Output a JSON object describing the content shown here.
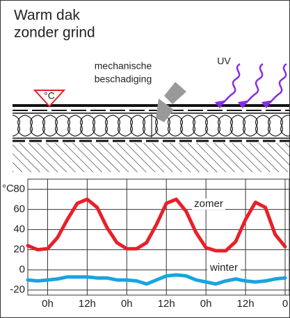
{
  "header": {
    "title_lines": [
      "Warm dak",
      "zonder grind"
    ]
  },
  "diagram": {
    "damage_label_lines": [
      "mechanische",
      "beschadiging"
    ],
    "uv_label": "UV",
    "temp_symbol": "°C"
  },
  "chart_data": {
    "type": "line",
    "ylabel": "°C",
    "x": [
      -6,
      -3,
      0,
      3,
      6,
      9,
      12,
      15,
      18,
      21,
      24,
      27,
      30,
      33,
      36,
      39,
      42,
      45,
      48,
      51,
      54,
      57,
      60,
      63,
      66,
      69,
      72
    ],
    "series": [
      {
        "name": "zomer",
        "color": "#e8202a",
        "values": [
          24,
          20,
          21,
          32,
          50,
          66,
          70,
          62,
          42,
          27,
          21,
          21,
          27,
          45,
          66,
          70,
          58,
          37,
          22,
          19,
          19,
          28,
          50,
          67,
          62,
          35,
          23
        ]
      },
      {
        "name": "winter",
        "color": "#1aa3e0",
        "values": [
          -10,
          -11,
          -10,
          -9,
          -7,
          -7,
          -7,
          -8,
          -8,
          -10,
          -10,
          -11,
          -14,
          -10,
          -6,
          -5,
          -6,
          -10,
          -12,
          -14,
          -11,
          -9,
          -11,
          -12,
          -11,
          -9,
          -8
        ]
      }
    ],
    "xlim": [
      -6,
      72
    ],
    "xticks": [
      {
        "value": 0,
        "label": "0h"
      },
      {
        "value": 12,
        "label": "12h"
      },
      {
        "value": 24,
        "label": "0h"
      },
      {
        "value": 36,
        "label": "12h"
      },
      {
        "value": 48,
        "label": "0h"
      },
      {
        "value": 60,
        "label": "12h"
      },
      {
        "value": 72,
        "label": "0"
      }
    ],
    "ylim": [
      -25,
      90
    ],
    "yticks": [
      80,
      60,
      40,
      20,
      0,
      -20
    ],
    "grid": true
  }
}
